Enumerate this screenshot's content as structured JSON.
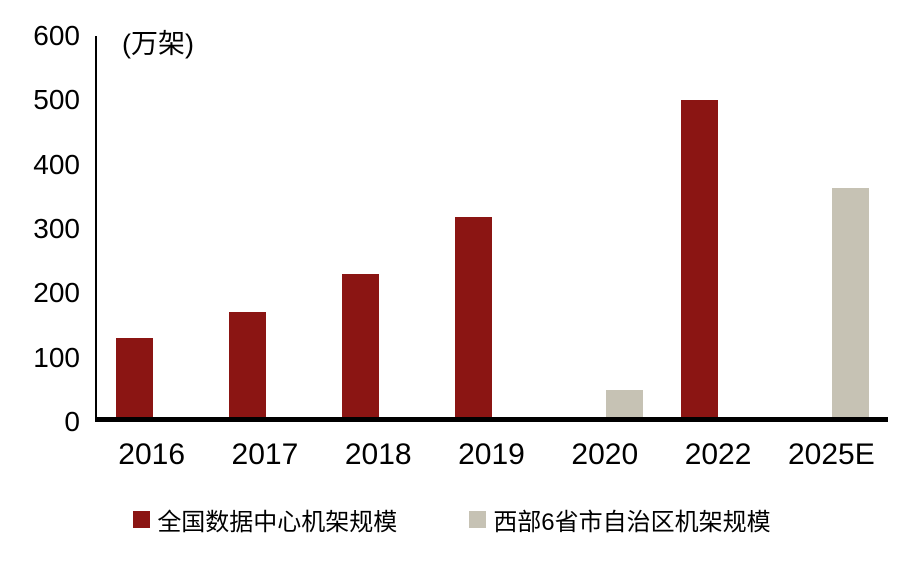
{
  "chart_data": {
    "type": "bar",
    "title": "",
    "unit_label": "(万架)",
    "categories": [
      "2016",
      "2017",
      "2018",
      "2019",
      "2020",
      "2022",
      "2025E"
    ],
    "series": [
      {
        "name": "全国数据中心机架规模",
        "color": "#8B1513",
        "values": [
          124,
          166,
          226,
          315,
          null,
          500,
          null
        ]
      },
      {
        "name": "西部6省市自治区机架规模",
        "color": "#C6C2B4",
        "values": [
          null,
          null,
          null,
          null,
          42,
          null,
          360
        ]
      }
    ],
    "ylim": [
      0,
      600
    ],
    "yticks": [
      0,
      100,
      200,
      300,
      400,
      500,
      600
    ],
    "xlabel": "",
    "ylabel": "",
    "grid": false,
    "legend_position": "bottom"
  }
}
